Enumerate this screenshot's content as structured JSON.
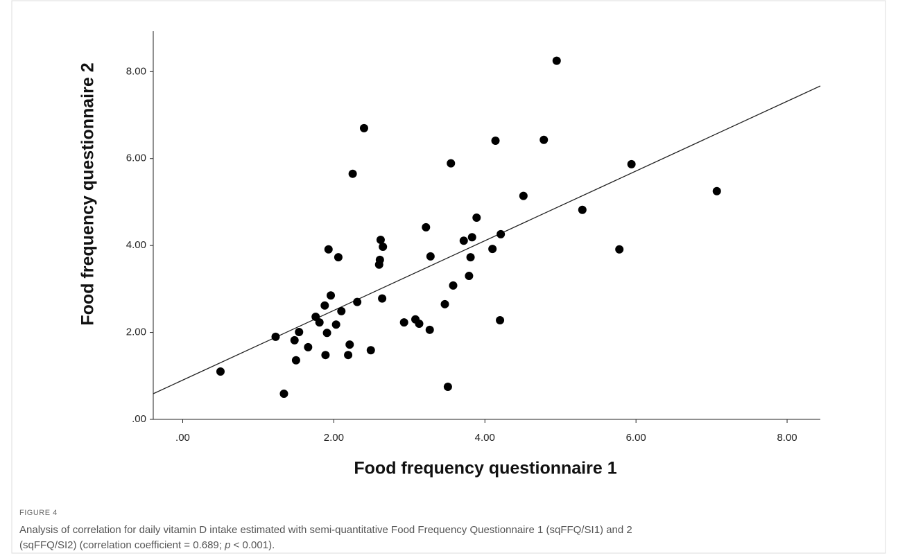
{
  "chart_data": {
    "type": "scatter",
    "xlabel": "Food frequency questionnaire 1",
    "ylabel": "Food frequency questionnaire 2",
    "figure_label": "FIGURE 4",
    "caption": [
      "Analysis of correlation for daily vitamin D intake estimated with semi-quantitative Food Frequency Questionnaire 1 (sqFFQ/SI1) and 2",
      "(sqFFQ/SI2) (correlation coefficient = 0.689; ",
      "p",
      " < 0.001)."
    ],
    "xlim": [
      -0.39,
      8.44
    ],
    "ylim": [
      0,
      8.93
    ],
    "xticks": [
      {
        "value": 0,
        "label": ".00"
      },
      {
        "value": 2,
        "label": "2.00"
      },
      {
        "value": 4,
        "label": "4.00"
      },
      {
        "value": 6,
        "label": "6.00"
      },
      {
        "value": 8,
        "label": "8.00"
      }
    ],
    "yticks": [
      {
        "value": 0,
        "label": ".00"
      },
      {
        "value": 2,
        "label": "2.00"
      },
      {
        "value": 4,
        "label": "4.00"
      },
      {
        "value": 6,
        "label": "6.00"
      },
      {
        "value": 8,
        "label": "8.00"
      }
    ],
    "color": "#000000",
    "x": [
      0.5,
      1.23,
      1.34,
      1.48,
      1.5,
      1.54,
      1.66,
      1.76,
      1.81,
      1.88,
      1.89,
      1.91,
      1.93,
      1.96,
      2.03,
      2.06,
      2.1,
      2.19,
      2.21,
      2.25,
      2.31,
      2.4,
      2.49,
      2.6,
      2.61,
      2.62,
      2.64,
      2.65,
      2.93,
      3.08,
      3.13,
      3.22,
      3.27,
      3.28,
      3.47,
      3.51,
      3.55,
      3.58,
      3.72,
      3.79,
      3.81,
      3.83,
      3.89,
      4.1,
      4.14,
      4.2,
      4.21,
      4.51,
      4.78,
      4.95,
      5.29,
      5.78,
      5.94,
      7.07
    ],
    "values": [
      1.1,
      1.9,
      0.59,
      1.82,
      1.36,
      2.01,
      1.66,
      2.36,
      2.23,
      2.62,
      1.48,
      1.99,
      3.91,
      2.85,
      2.18,
      3.73,
      2.49,
      1.48,
      1.72,
      5.65,
      2.7,
      6.7,
      1.59,
      3.56,
      3.67,
      4.13,
      2.78,
      3.97,
      2.23,
      2.3,
      2.2,
      4.42,
      2.06,
      3.75,
      2.65,
      0.75,
      5.89,
      3.08,
      4.11,
      3.3,
      3.73,
      4.19,
      4.64,
      3.92,
      6.41,
      2.28,
      4.26,
      5.14,
      6.43,
      8.25,
      4.82,
      3.91,
      5.87,
      5.25
    ],
    "trend_line": {
      "x": [
        -0.39,
        8.44
      ],
      "y": [
        0.59,
        7.67
      ]
    }
  }
}
